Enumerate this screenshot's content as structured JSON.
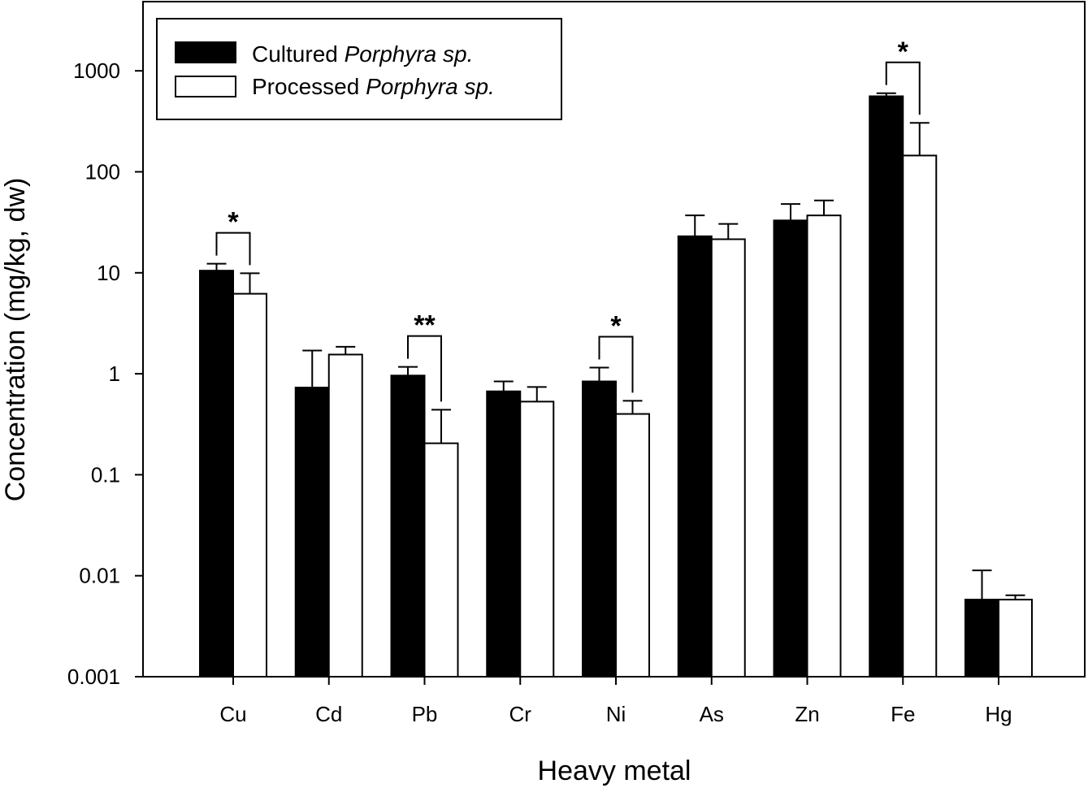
{
  "chart_data": {
    "type": "bar",
    "title": "",
    "xlabel": "Heavy metal",
    "ylabel": "Concentration (mg/kg, dw)",
    "yscale": "log",
    "ylim": [
      0.001,
      3000
    ],
    "yticks": [
      {
        "value": 0.001,
        "label": "0.001"
      },
      {
        "value": 0.01,
        "label": "0.01"
      },
      {
        "value": 0.1,
        "label": "0.1"
      },
      {
        "value": 1,
        "label": "1"
      },
      {
        "value": 10,
        "label": "10"
      },
      {
        "value": 100,
        "label": "100"
      },
      {
        "value": 1000,
        "label": "1000"
      }
    ],
    "categories": [
      "Cu",
      "Cd",
      "Pb",
      "Cr",
      "Ni",
      "As",
      "Zn",
      "Fe",
      "Hg"
    ],
    "series": [
      {
        "name_prefix": "Cultured ",
        "name_italic": "Porphyra sp.",
        "fill": "#000000",
        "values": [
          10.5,
          0.73,
          0.96,
          0.67,
          0.84,
          23,
          33,
          560,
          0.0058
        ],
        "error_upper": [
          12.3,
          1.7,
          1.17,
          0.84,
          1.15,
          37,
          48,
          600,
          0.0113
        ]
      },
      {
        "name_prefix": "Processed ",
        "name_italic": "Porphyra sp.",
        "fill": "#ffffff",
        "values": [
          6.2,
          1.55,
          0.205,
          0.53,
          0.4,
          21.5,
          37,
          145,
          0.0058
        ],
        "error_upper": [
          9.9,
          1.85,
          0.44,
          0.74,
          0.54,
          30.5,
          52,
          305,
          0.0064
        ]
      }
    ],
    "significance": [
      {
        "category": "Cu",
        "label": "*"
      },
      {
        "category": "Pb",
        "label": "**"
      },
      {
        "category": "Ni",
        "label": "*"
      },
      {
        "category": "Fe",
        "label": "*"
      }
    ],
    "legend_position": "top-left",
    "grid": false
  }
}
